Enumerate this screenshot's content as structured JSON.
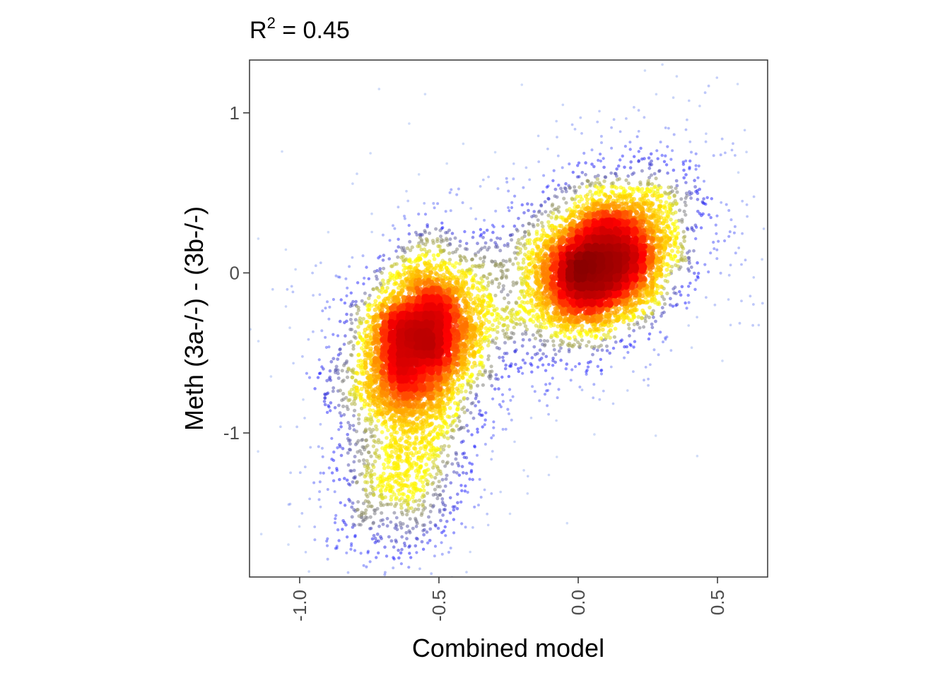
{
  "chart_data": {
    "type": "scatter",
    "title": "R² = 0.45",
    "title_parts": {
      "base": "R",
      "superscript": "2",
      "rest": " = 0.45"
    },
    "xlabel": "Combined model",
    "ylabel": "Meth (3a-/-) - (3b-/-)",
    "xlim": [
      -1.18,
      0.68
    ],
    "ylim": [
      -1.9,
      1.33
    ],
    "x_ticks": [
      -1.0,
      -0.5,
      0.0,
      0.5
    ],
    "x_tick_labels": [
      "-1.0",
      "-0.5",
      "0.0",
      "0.5"
    ],
    "y_ticks": [
      1,
      0,
      -1
    ],
    "y_tick_labels": [
      "1",
      "0",
      "-1"
    ],
    "grid": false,
    "coloring": "point density",
    "density_colors": [
      "#add8e6",
      "#0000ff",
      "#ffff00",
      "#ffa500",
      "#ff0000",
      "#8b0000"
    ],
    "clusters": [
      {
        "center": [
          -0.57,
          -0.43
        ],
        "spread": [
          0.12,
          0.28
        ],
        "correlation": 0.25,
        "weight": 0.42
      },
      {
        "center": [
          0.08,
          0.07
        ],
        "spread": [
          0.14,
          0.24
        ],
        "correlation": 0.3,
        "weight": 0.48
      },
      {
        "center": [
          -0.62,
          -1.25
        ],
        "spread": [
          0.12,
          0.28
        ],
        "correlation": 0.2,
        "weight": 0.1
      }
    ]
  }
}
